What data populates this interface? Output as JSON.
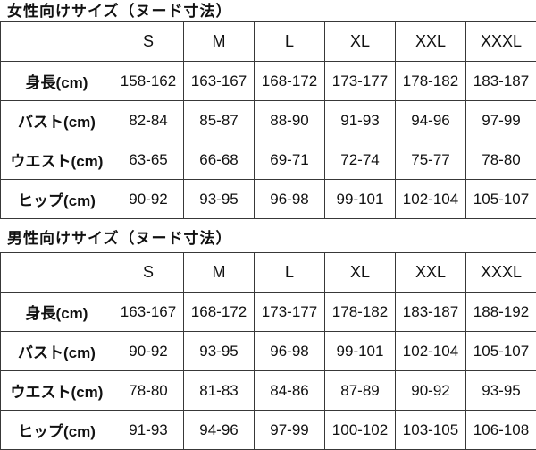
{
  "page": {
    "background_color": "#ffffff",
    "text_color": "#111111",
    "border_color": "#383838"
  },
  "chart_data": [
    {
      "type": "table",
      "title": "女性向けサイズ（ヌード寸法）",
      "columns": [
        "S",
        "M",
        "L",
        "XL",
        "XXL",
        "XXXL"
      ],
      "rows": [
        {
          "label": "身長(cm)",
          "values": [
            "158-162",
            "163-167",
            "168-172",
            "173-177",
            "178-182",
            "183-187"
          ]
        },
        {
          "label": "バスト(cm)",
          "values": [
            "82-84",
            "85-87",
            "88-90",
            "91-93",
            "94-96",
            "97-99"
          ]
        },
        {
          "label": "ウエスト(cm)",
          "values": [
            "63-65",
            "66-68",
            "69-71",
            "72-74",
            "75-77",
            "78-80"
          ]
        },
        {
          "label": "ヒップ(cm)",
          "values": [
            "90-92",
            "93-95",
            "96-98",
            "99-101",
            "102-104",
            "105-107"
          ]
        }
      ]
    },
    {
      "type": "table",
      "title": "男性向けサイズ（ヌード寸法）",
      "columns": [
        "S",
        "M",
        "L",
        "XL",
        "XXL",
        "XXXL"
      ],
      "rows": [
        {
          "label": "身長(cm)",
          "values": [
            "163-167",
            "168-172",
            "173-177",
            "178-182",
            "183-187",
            "188-192"
          ]
        },
        {
          "label": "バスト(cm)",
          "values": [
            "90-92",
            "93-95",
            "96-98",
            "99-101",
            "102-104",
            "105-107"
          ]
        },
        {
          "label": "ウエスト(cm)",
          "values": [
            "78-80",
            "81-83",
            "84-86",
            "87-89",
            "90-92",
            "93-95"
          ]
        },
        {
          "label": "ヒップ(cm)",
          "values": [
            "91-93",
            "94-96",
            "97-99",
            "100-102",
            "103-105",
            "106-108"
          ]
        }
      ]
    }
  ]
}
